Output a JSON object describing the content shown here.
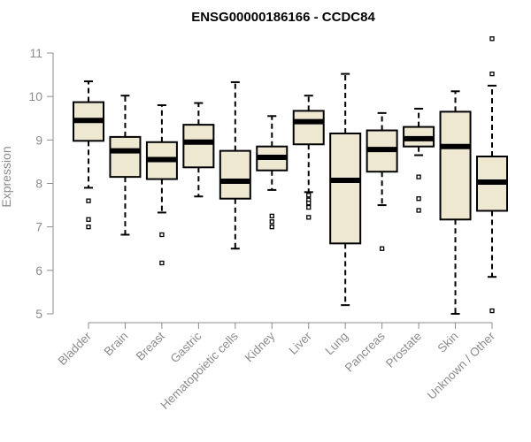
{
  "chart_data": {
    "type": "boxplot",
    "title": "ENSG00000186166 - CCDC84",
    "xlabel": "",
    "ylabel": "Expression",
    "ylim": [
      5,
      11
    ],
    "yticks": [
      5,
      6,
      7,
      8,
      9,
      10,
      11
    ],
    "grid": false,
    "box_fill": "#efe8d0",
    "categories": [
      "Bladder",
      "Brain",
      "Breast",
      "Gastric",
      "Hematopoietic cells",
      "Kidney",
      "Liver",
      "Lung",
      "Pancreas",
      "Prostate",
      "Skin",
      "Unknown / Other"
    ],
    "boxes": [
      {
        "category": "Bladder",
        "whisker_low": 7.9,
        "q1": 8.98,
        "median": 9.45,
        "q3": 9.87,
        "whisker_high": 10.35,
        "outliers": [
          7.6,
          7.17,
          7.0
        ]
      },
      {
        "category": "Brain",
        "whisker_low": 6.82,
        "q1": 8.15,
        "median": 8.75,
        "q3": 9.07,
        "whisker_high": 10.02,
        "outliers": []
      },
      {
        "category": "Breast",
        "whisker_low": 7.33,
        "q1": 8.1,
        "median": 8.55,
        "q3": 8.95,
        "whisker_high": 9.8,
        "outliers": [
          6.82,
          6.17
        ]
      },
      {
        "category": "Gastric",
        "whisker_low": 7.7,
        "q1": 8.37,
        "median": 8.95,
        "q3": 9.35,
        "whisker_high": 9.85,
        "outliers": []
      },
      {
        "category": "Hematopoietic cells",
        "whisker_low": 6.5,
        "q1": 7.65,
        "median": 8.05,
        "q3": 8.75,
        "whisker_high": 10.33,
        "outliers": []
      },
      {
        "category": "Kidney",
        "whisker_low": 7.85,
        "q1": 8.3,
        "median": 8.6,
        "q3": 8.85,
        "whisker_high": 9.55,
        "outliers": [
          7.25,
          7.12,
          7.0
        ]
      },
      {
        "category": "Liver",
        "whisker_low": 7.8,
        "q1": 8.9,
        "median": 9.42,
        "q3": 9.67,
        "whisker_high": 10.02,
        "outliers": [
          7.73,
          7.62,
          7.55,
          7.45,
          7.22
        ]
      },
      {
        "category": "Lung",
        "whisker_low": 5.2,
        "q1": 6.62,
        "median": 8.07,
        "q3": 9.15,
        "whisker_high": 10.52,
        "outliers": []
      },
      {
        "category": "Pancreas",
        "whisker_low": 7.5,
        "q1": 8.27,
        "median": 8.78,
        "q3": 9.22,
        "whisker_high": 9.62,
        "outliers": [
          6.5
        ]
      },
      {
        "category": "Prostate",
        "whisker_low": 8.65,
        "q1": 8.85,
        "median": 9.03,
        "q3": 9.3,
        "whisker_high": 9.72,
        "outliers": [
          8.15,
          7.65,
          7.38
        ]
      },
      {
        "category": "Skin",
        "whisker_low": 5.0,
        "q1": 7.17,
        "median": 8.85,
        "q3": 9.65,
        "whisker_high": 10.12,
        "outliers": []
      },
      {
        "category": "Unknown / Other",
        "whisker_low": 5.85,
        "q1": 7.37,
        "median": 8.03,
        "q3": 8.62,
        "whisker_high": 10.25,
        "outliers": [
          11.33,
          10.52,
          5.07
        ]
      }
    ]
  }
}
